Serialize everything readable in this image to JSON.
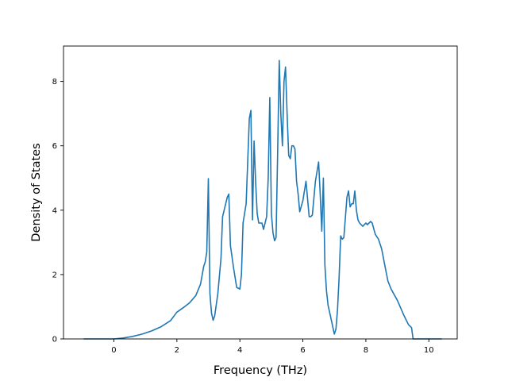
{
  "chart_data": {
    "type": "line",
    "xlabel": "Frequency (THz)",
    "ylabel": "Density of States",
    "xlim": [
      -1.6,
      10.9
    ],
    "ylim": [
      0,
      9.1
    ],
    "xticks": [
      0,
      2,
      4,
      6,
      8,
      10
    ],
    "yticks": [
      0,
      2,
      4,
      6,
      8
    ],
    "grid": false,
    "color": "#1f77b4",
    "series": [
      {
        "x": [
          -0.95,
          -0.5,
          0.0,
          0.3,
          0.6,
          0.9,
          1.2,
          1.5,
          1.8,
          2.0,
          2.2,
          2.4,
          2.6,
          2.75,
          2.85,
          2.9,
          2.95,
          3.0,
          3.05,
          3.1,
          3.15,
          3.2,
          3.3,
          3.4,
          3.45,
          3.5,
          3.6,
          3.65,
          3.7,
          3.8,
          3.9,
          4.0,
          4.05,
          4.1,
          4.2,
          4.3,
          4.35,
          4.4,
          4.45,
          4.5,
          4.55,
          4.6,
          4.7,
          4.75,
          4.85,
          4.9,
          4.95,
          5.0,
          5.05,
          5.1,
          5.15,
          5.2,
          5.25,
          5.3,
          5.35,
          5.4,
          5.45,
          5.5,
          5.55,
          5.6,
          5.65,
          5.7,
          5.75,
          5.8,
          5.85,
          5.9,
          6.0,
          6.1,
          6.2,
          6.25,
          6.3,
          6.4,
          6.5,
          6.55,
          6.6,
          6.65,
          6.7,
          6.75,
          6.8,
          6.9,
          7.0,
          7.05,
          7.1,
          7.15,
          7.2,
          7.25,
          7.3,
          7.4,
          7.45,
          7.5,
          7.55,
          7.6,
          7.65,
          7.7,
          7.75,
          7.8,
          7.9,
          8.0,
          8.05,
          8.1,
          8.15,
          8.2,
          8.3,
          8.4,
          8.5,
          8.6,
          8.7,
          8.8,
          9.0,
          9.2,
          9.35,
          9.45,
          9.5,
          10.0,
          10.4
        ],
        "values": [
          0,
          0,
          0,
          0.03,
          0.08,
          0.15,
          0.25,
          0.38,
          0.57,
          0.83,
          0.97,
          1.12,
          1.35,
          1.7,
          2.25,
          2.4,
          2.7,
          4.98,
          1.4,
          0.8,
          0.58,
          0.72,
          1.4,
          2.5,
          3.8,
          4.0,
          4.4,
          4.5,
          2.9,
          2.2,
          1.6,
          1.55,
          2.0,
          3.6,
          4.2,
          6.85,
          7.1,
          3.7,
          6.15,
          4.9,
          3.9,
          3.6,
          3.6,
          3.4,
          3.8,
          5.0,
          7.5,
          3.9,
          3.3,
          3.05,
          3.15,
          5.8,
          8.65,
          7.0,
          6.0,
          8.0,
          8.45,
          7.0,
          5.7,
          5.6,
          6.0,
          6.0,
          5.9,
          4.9,
          4.5,
          3.95,
          4.3,
          4.9,
          3.8,
          3.8,
          3.85,
          4.9,
          5.5,
          4.5,
          3.35,
          5.0,
          2.3,
          1.5,
          1.05,
          0.6,
          0.15,
          0.3,
          0.9,
          1.9,
          3.2,
          3.1,
          3.15,
          4.4,
          4.6,
          4.1,
          4.2,
          4.2,
          4.6,
          4.0,
          3.7,
          3.6,
          3.5,
          3.6,
          3.55,
          3.6,
          3.65,
          3.6,
          3.25,
          3.1,
          2.8,
          2.3,
          1.8,
          1.55,
          1.2,
          0.75,
          0.45,
          0.35,
          0,
          0,
          0
        ]
      }
    ]
  }
}
